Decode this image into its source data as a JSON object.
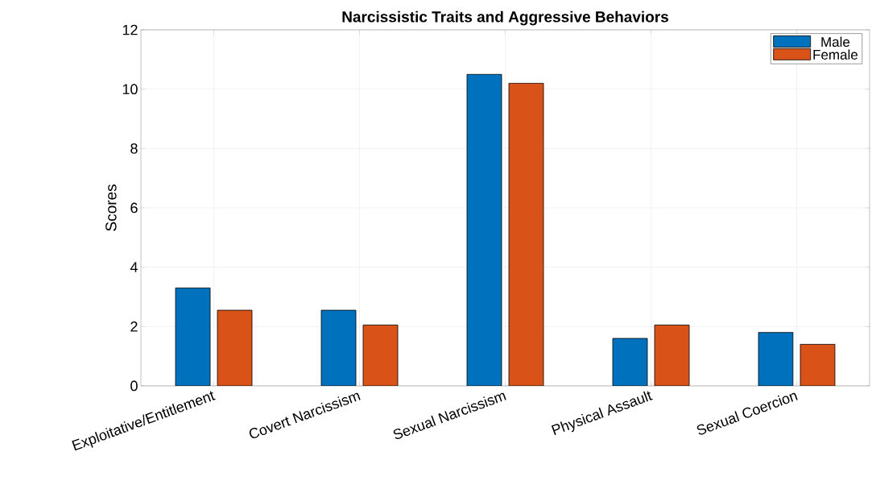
{
  "chart_data": {
    "type": "bar",
    "title": "Narcissistic Traits and Aggressive Behaviors",
    "ylabel": "Scores",
    "categories": [
      "Exploitative/Entitlement",
      "Covert Narcissism",
      "Sexual Narcissism",
      "Physical Assault",
      "Sexual Coercion"
    ],
    "series": [
      {
        "name": "Male",
        "color": "#0072bd",
        "values": [
          3.3,
          2.55,
          10.5,
          1.6,
          1.8
        ]
      },
      {
        "name": "Female",
        "color": "#d95319",
        "values": [
          2.55,
          2.05,
          10.2,
          2.05,
          1.4
        ]
      }
    ],
    "ylim": [
      0,
      12
    ],
    "yticks": [
      0,
      2,
      4,
      6,
      8,
      10,
      12
    ],
    "grid": true,
    "legend": "top right"
  }
}
